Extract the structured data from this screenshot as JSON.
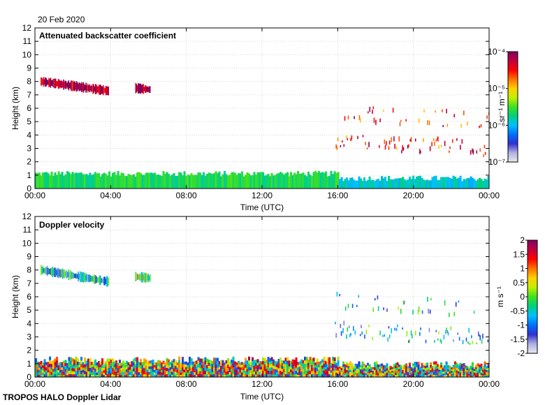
{
  "header": {
    "date": "20 Feb 2020"
  },
  "footer": {
    "label": "TROPOS HALO Doppler Lidar"
  },
  "colors": {
    "cmap": [
      "#e8e8f0",
      "#b0b0e0",
      "#3030d0",
      "#0070ff",
      "#00c0ff",
      "#00d080",
      "#40e020",
      "#c0f000",
      "#ffd000",
      "#ff7000",
      "#ff0000",
      "#c00040",
      "#800060"
    ]
  },
  "chart_data": [
    {
      "type": "heatmap",
      "title": "Attenuated backscatter coefficient",
      "xlabel": "Time (UTC)",
      "ylabel": "Height (km)",
      "xticks": [
        "00:00",
        "04:00",
        "08:00",
        "12:00",
        "16:00",
        "20:00",
        "00:00"
      ],
      "xlim": [
        0,
        24
      ],
      "ylim": [
        0,
        12
      ],
      "yticks": [
        "0",
        "1",
        "2",
        "3",
        "4",
        "5",
        "6",
        "7",
        "8",
        "9",
        "10",
        "11",
        "12"
      ],
      "colorbar": {
        "unit": "sr⁻¹ m⁻¹",
        "scale": "log",
        "range": [
          1e-07,
          0.0001
        ],
        "tick_labels": [
          "10⁻⁷",
          "10⁻⁶",
          "10⁻⁵",
          "10⁻⁴"
        ]
      },
      "features": [
        {
          "feature": "boundary layer",
          "x_start": 0,
          "x_end": 24,
          "y_bottom": 0,
          "y_top": 1.2,
          "level": 0.45
        },
        {
          "feature": "cloud",
          "x_start": 0.3,
          "x_end": 3.9,
          "y_bottom": 7.0,
          "y_top": 8.3,
          "level": 0.95
        },
        {
          "feature": "cloud",
          "x_start": 5.3,
          "x_end": 6.1,
          "y_bottom": 7.6,
          "y_top": 7.8,
          "level": 1.0
        },
        {
          "feature": "cloud",
          "x_start": 15.8,
          "x_end": 24,
          "y_bottom": 2.2,
          "y_top": 6.3,
          "level": 0.85
        }
      ]
    },
    {
      "type": "heatmap",
      "title": "Doppler velocity",
      "xlabel": "Time (UTC)",
      "ylabel": "Height (km)",
      "xticks": [
        "00:00",
        "04:00",
        "08:00",
        "12:00",
        "16:00",
        "20:00",
        "00:00"
      ],
      "xlim": [
        0,
        24
      ],
      "ylim": [
        0,
        12
      ],
      "yticks": [
        "0",
        "1",
        "2",
        "3",
        "4",
        "5",
        "6",
        "7",
        "8",
        "9",
        "10",
        "11",
        "12"
      ],
      "colorbar": {
        "unit": "m s⁻¹",
        "scale": "linear",
        "range": [
          -2,
          2
        ],
        "tick_labels": [
          "2",
          "1.5",
          "1",
          "0.5",
          "0",
          "-0.5",
          "-1",
          "-1.5",
          "-2"
        ]
      },
      "features": [
        {
          "feature": "boundary layer",
          "x_start": 0,
          "x_end": 24,
          "y_bottom": 0,
          "y_top": 1.4,
          "level": "mixed"
        },
        {
          "feature": "cloud",
          "x_start": 0.3,
          "x_end": 3.9,
          "y_bottom": 6.7,
          "y_top": 8.3,
          "level": -0.8
        },
        {
          "feature": "cloud",
          "x_start": 5.3,
          "x_end": 6.1,
          "y_bottom": 7.6,
          "y_top": 7.8,
          "level": 0.2
        },
        {
          "feature": "cloud",
          "x_start": 15.8,
          "x_end": 24,
          "y_bottom": 2.2,
          "y_top": 6.3,
          "level": -0.6
        }
      ]
    }
  ]
}
